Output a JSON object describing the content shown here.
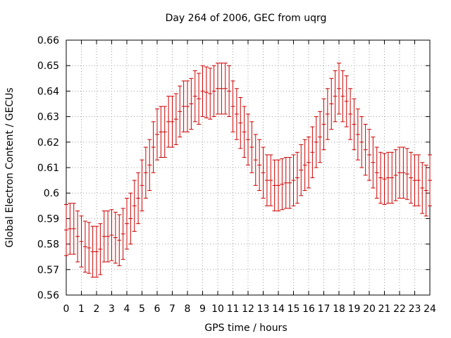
{
  "chart_data": {
    "type": "scatter",
    "title": "Day 264 of 2006, GEC from uqrg",
    "xlabel": "GPS time / hours",
    "ylabel": "Global Electron Content / GECUs",
    "xlim": [
      0,
      24
    ],
    "ylim": [
      0.56,
      0.66
    ],
    "x_ticks": [
      0,
      1,
      2,
      3,
      4,
      5,
      6,
      7,
      8,
      9,
      10,
      11,
      12,
      13,
      14,
      15,
      16,
      17,
      18,
      19,
      20,
      21,
      22,
      23,
      24
    ],
    "x_tick_labels": [
      "0",
      "1",
      "2",
      "3",
      "4",
      "5",
      "6",
      "7",
      "8",
      "9",
      "10",
      "11",
      "12",
      "13",
      "14",
      "15",
      "16",
      "17",
      "18",
      "19",
      "20",
      "21",
      "22",
      "23",
      "24"
    ],
    "y_ticks": [
      0.56,
      0.57,
      0.58,
      0.59,
      0.6,
      0.61,
      0.62,
      0.63,
      0.64,
      0.65,
      0.66
    ],
    "y_tick_labels": [
      "0.56",
      "0.57",
      "0.58",
      "0.59",
      "0.6",
      "0.61",
      "0.62",
      "0.63",
      "0.64",
      "0.65",
      "0.66"
    ],
    "grid": true,
    "series": [
      {
        "style": "errorbars",
        "color": "#cc0000",
        "x": [
          0.0,
          0.25,
          0.5,
          0.75,
          1.0,
          1.25,
          1.5,
          1.75,
          2.0,
          2.25,
          2.5,
          2.75,
          3.0,
          3.25,
          3.5,
          3.75,
          4.0,
          4.25,
          4.5,
          4.75,
          5.0,
          5.25,
          5.5,
          5.75,
          6.0,
          6.25,
          6.5,
          6.75,
          7.0,
          7.25,
          7.5,
          7.75,
          8.0,
          8.25,
          8.5,
          8.75,
          9.0,
          9.25,
          9.5,
          9.75,
          10.0,
          10.25,
          10.5,
          10.75,
          11.0,
          11.25,
          11.5,
          11.75,
          12.0,
          12.25,
          12.5,
          12.75,
          13.0,
          13.25,
          13.5,
          13.75,
          14.0,
          14.25,
          14.5,
          14.75,
          15.0,
          15.25,
          15.5,
          15.75,
          16.0,
          16.25,
          16.5,
          16.75,
          17.0,
          17.25,
          17.5,
          17.75,
          18.0,
          18.25,
          18.5,
          18.75,
          19.0,
          19.25,
          19.5,
          19.75,
          20.0,
          20.25,
          20.5,
          20.75,
          21.0,
          21.25,
          21.5,
          21.75,
          22.0,
          22.25,
          22.5,
          22.75,
          23.0,
          23.25,
          23.5,
          23.75,
          24.0
        ],
        "y": [
          0.5855,
          0.586,
          0.586,
          0.583,
          0.581,
          0.579,
          0.5785,
          0.577,
          0.577,
          0.578,
          0.583,
          0.583,
          0.5835,
          0.5825,
          0.5815,
          0.584,
          0.588,
          0.59,
          0.595,
          0.598,
          0.603,
          0.608,
          0.611,
          0.618,
          0.623,
          0.624,
          0.624,
          0.628,
          0.628,
          0.629,
          0.632,
          0.634,
          0.634,
          0.635,
          0.638,
          0.637,
          0.64,
          0.6395,
          0.639,
          0.64,
          0.641,
          0.641,
          0.641,
          0.64,
          0.634,
          0.631,
          0.6275,
          0.624,
          0.621,
          0.618,
          0.613,
          0.611,
          0.608,
          0.605,
          0.605,
          0.603,
          0.603,
          0.6035,
          0.604,
          0.604,
          0.605,
          0.606,
          0.609,
          0.611,
          0.612,
          0.616,
          0.62,
          0.622,
          0.627,
          0.631,
          0.635,
          0.638,
          0.641,
          0.638,
          0.636,
          0.631,
          0.627,
          0.623,
          0.62,
          0.617,
          0.615,
          0.612,
          0.608,
          0.606,
          0.6055,
          0.606,
          0.606,
          0.607,
          0.608,
          0.608,
          0.6075,
          0.606,
          0.605,
          0.605,
          0.602,
          0.601,
          0.605
        ],
        "error": 0.01
      }
    ]
  }
}
